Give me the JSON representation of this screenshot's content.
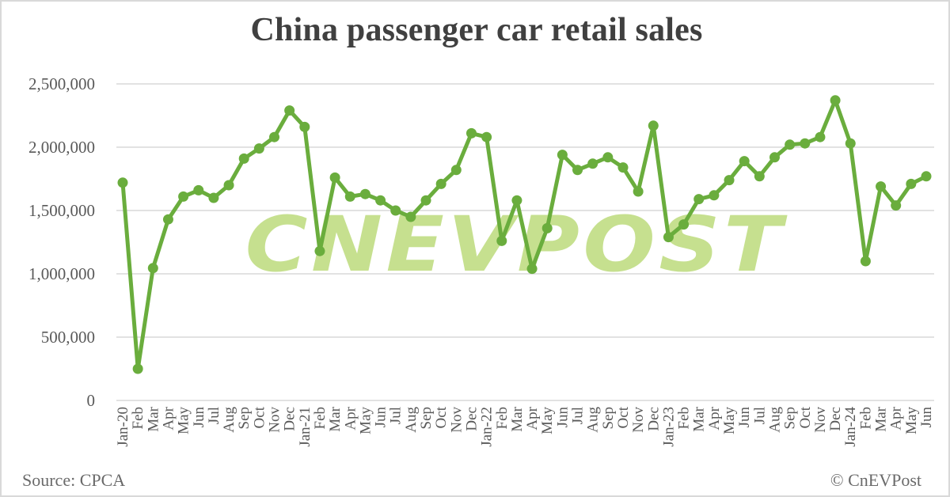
{
  "title": "China passenger car retail sales",
  "footer": {
    "source": "Source: CPCA",
    "copyright": "© CnEVPost"
  },
  "watermark": "CNEVPOST",
  "colors": {
    "line": "#6aad3d",
    "watermark": "#c6e08f",
    "grid": "#d9d9d9",
    "text": "#595959",
    "title": "#404040"
  },
  "chart_data": {
    "type": "line",
    "title": "China passenger car retail sales",
    "xlabel": "",
    "ylabel": "",
    "ylim": [
      0,
      2500000
    ],
    "yticks": [
      0,
      500000,
      1000000,
      1500000,
      2000000,
      2500000
    ],
    "ytick_labels": [
      "0",
      "500,000",
      "1,000,000",
      "1,500,000",
      "2,000,000",
      "2,500,000"
    ],
    "grid": true,
    "legend": null,
    "markers": true,
    "categories": [
      "Jan-20",
      "Feb",
      "Mar",
      "Apr",
      "May",
      "Jun",
      "Jul",
      "Aug",
      "Sep",
      "Oct",
      "Nov",
      "Dec",
      "Jan-21",
      "Feb",
      "Mar",
      "Apr",
      "May",
      "Jun",
      "Jul",
      "Aug",
      "Sep",
      "Oct",
      "Nov",
      "Dec",
      "Jan-22",
      "Feb",
      "Mar",
      "Apr",
      "May",
      "Jun",
      "Jul",
      "Aug",
      "Sep",
      "Oct",
      "Nov",
      "Dec",
      "Jan-23",
      "Feb",
      "Mar",
      "Apr",
      "May",
      "Jun",
      "Jul",
      "Aug",
      "Sep",
      "Oct",
      "Nov",
      "Dec",
      "Jan-24",
      "Feb",
      "Mar",
      "Apr",
      "May",
      "Jun"
    ],
    "series": [
      {
        "name": "Retail sales",
        "values": [
          1720000,
          250000,
          1045000,
          1430000,
          1610000,
          1660000,
          1600000,
          1700000,
          1910000,
          1990000,
          2080000,
          2290000,
          2160000,
          1180000,
          1760000,
          1610000,
          1630000,
          1580000,
          1500000,
          1450000,
          1580000,
          1710000,
          1820000,
          2110000,
          2080000,
          1260000,
          1580000,
          1040000,
          1360000,
          1940000,
          1820000,
          1870000,
          1920000,
          1840000,
          1650000,
          2170000,
          1290000,
          1390000,
          1590000,
          1620000,
          1740000,
          1890000,
          1770000,
          1920000,
          2020000,
          2030000,
          2080000,
          2370000,
          2030000,
          1100000,
          1690000,
          1540000,
          1710000,
          1770000
        ]
      }
    ]
  }
}
